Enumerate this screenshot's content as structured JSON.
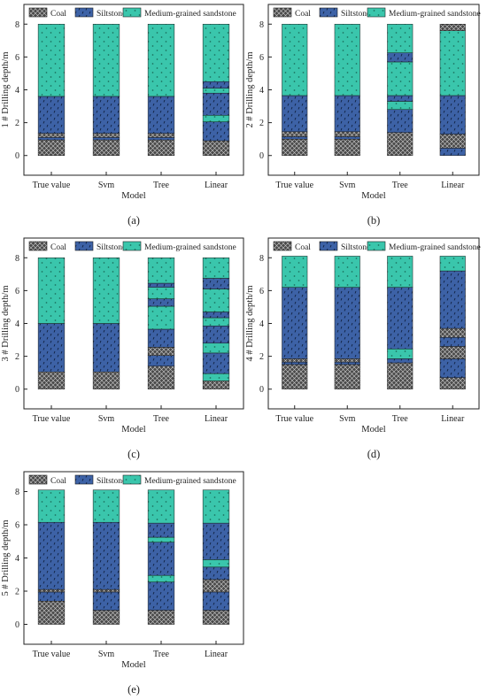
{
  "colors": {
    "coal": "#4a4a4a",
    "siltstone": "#3d62a6",
    "sandstone": "#3ac6ac",
    "axis": "#222222"
  },
  "legend": {
    "coal": "Coal",
    "siltstone": "Siltstone",
    "sandstone": "Medium-grained sandstone"
  },
  "chart_data": [
    {
      "type": "bar",
      "stacked": true,
      "panel_label": "(a)",
      "xlabel": "Model",
      "ylabel": "1 # Drilling depth/m",
      "categories": [
        "True value",
        "Svm",
        "Tree",
        "Linear"
      ],
      "ylim": [
        -1.2,
        9.2
      ],
      "yticks": [
        0,
        2,
        4,
        6,
        8
      ],
      "segments": [
        [
          [
            "coal",
            0,
            0.95
          ],
          [
            "siltstone",
            0.95,
            1.1
          ],
          [
            "coal",
            1.1,
            1.35
          ],
          [
            "siltstone",
            1.35,
            3.6
          ],
          [
            "sandstone",
            3.6,
            8.0
          ]
        ],
        [
          [
            "coal",
            0,
            0.95
          ],
          [
            "siltstone",
            0.95,
            1.1
          ],
          [
            "coal",
            1.1,
            1.35
          ],
          [
            "siltstone",
            1.35,
            3.6
          ],
          [
            "sandstone",
            3.6,
            8.0
          ]
        ],
        [
          [
            "coal",
            0,
            0.95
          ],
          [
            "siltstone",
            0.95,
            1.1
          ],
          [
            "coal",
            1.1,
            1.35
          ],
          [
            "siltstone",
            1.35,
            3.6
          ],
          [
            "sandstone",
            3.6,
            8.0
          ]
        ],
        [
          [
            "coal",
            0,
            0.9
          ],
          [
            "siltstone",
            0.9,
            2.05
          ],
          [
            "sandstone",
            2.05,
            2.45
          ],
          [
            "siltstone",
            2.45,
            3.8
          ],
          [
            "sandstone",
            3.8,
            4.1
          ],
          [
            "siltstone",
            4.1,
            4.5
          ],
          [
            "sandstone",
            4.5,
            8.0
          ]
        ]
      ]
    },
    {
      "type": "bar",
      "stacked": true,
      "panel_label": "(b)",
      "xlabel": "Model",
      "ylabel": "2 # Drilling depth/m",
      "categories": [
        "True value",
        "Svm",
        "Tree",
        "Linear"
      ],
      "ylim": [
        -1.2,
        9.2
      ],
      "yticks": [
        0,
        2,
        4,
        6,
        8
      ],
      "segments": [
        [
          [
            "coal",
            0,
            1.0
          ],
          [
            "siltstone",
            1.0,
            1.15
          ],
          [
            "coal",
            1.15,
            1.45
          ],
          [
            "siltstone",
            1.45,
            3.65
          ],
          [
            "sandstone",
            3.65,
            8.0
          ]
        ],
        [
          [
            "coal",
            0,
            1.0
          ],
          [
            "siltstone",
            1.0,
            1.15
          ],
          [
            "coal",
            1.15,
            1.45
          ],
          [
            "siltstone",
            1.45,
            3.65
          ],
          [
            "sandstone",
            3.65,
            8.0
          ]
        ],
        [
          [
            "coal",
            0,
            1.4
          ],
          [
            "siltstone",
            1.4,
            2.8
          ],
          [
            "sandstone",
            2.8,
            3.3
          ],
          [
            "siltstone",
            3.3,
            3.65
          ],
          [
            "sandstone",
            3.65,
            5.7
          ],
          [
            "siltstone",
            5.7,
            6.25
          ],
          [
            "sandstone",
            6.25,
            8.0
          ]
        ],
        [
          [
            "siltstone",
            0,
            0.45
          ],
          [
            "coal",
            0.45,
            1.3
          ],
          [
            "siltstone",
            1.3,
            3.65
          ],
          [
            "sandstone",
            3.65,
            7.6
          ],
          [
            "coal",
            7.6,
            8.0
          ]
        ]
      ]
    },
    {
      "type": "bar",
      "stacked": true,
      "panel_label": "(c)",
      "xlabel": "Model",
      "ylabel": "3 # Drilling depth/m",
      "categories": [
        "True value",
        "Svm",
        "Tree",
        "Linear"
      ],
      "ylim": [
        -1.2,
        9.2
      ],
      "yticks": [
        0,
        2,
        4,
        6,
        8
      ],
      "segments": [
        [
          [
            "coal",
            0,
            1.05
          ],
          [
            "siltstone",
            1.05,
            4.0
          ],
          [
            "sandstone",
            4.0,
            8.0
          ]
        ],
        [
          [
            "coal",
            0,
            1.05
          ],
          [
            "siltstone",
            1.05,
            4.0
          ],
          [
            "sandstone",
            4.0,
            8.0
          ]
        ],
        [
          [
            "coal",
            0,
            1.4
          ],
          [
            "siltstone",
            1.4,
            2.05
          ],
          [
            "coal",
            2.05,
            2.55
          ],
          [
            "siltstone",
            2.55,
            3.65
          ],
          [
            "sandstone",
            3.65,
            5.05
          ],
          [
            "siltstone",
            5.05,
            5.5
          ],
          [
            "sandstone",
            5.5,
            6.2
          ],
          [
            "siltstone",
            6.2,
            6.45
          ],
          [
            "sandstone",
            6.45,
            8.0
          ]
        ],
        [
          [
            "coal",
            0,
            0.5
          ],
          [
            "sandstone",
            0.5,
            0.95
          ],
          [
            "siltstone",
            0.95,
            2.2
          ],
          [
            "sandstone",
            2.2,
            2.8
          ],
          [
            "siltstone",
            2.8,
            3.85
          ],
          [
            "sandstone",
            3.85,
            4.35
          ],
          [
            "siltstone",
            4.35,
            4.7
          ],
          [
            "sandstone",
            4.7,
            6.1
          ],
          [
            "siltstone",
            6.1,
            6.75
          ],
          [
            "sandstone",
            6.75,
            8.0
          ]
        ]
      ]
    },
    {
      "type": "bar",
      "stacked": true,
      "panel_label": "(d)",
      "xlabel": "Model",
      "ylabel": "4 # Drilling depth/m",
      "categories": [
        "True value",
        "Svm",
        "Tree",
        "Linear"
      ],
      "ylim": [
        -1.2,
        9.2
      ],
      "yticks": [
        0,
        2,
        4,
        6,
        8
      ],
      "segments": [
        [
          [
            "coal",
            0,
            1.5
          ],
          [
            "siltstone",
            1.5,
            1.65
          ],
          [
            "coal",
            1.65,
            1.85
          ],
          [
            "siltstone",
            1.85,
            6.2
          ],
          [
            "sandstone",
            6.2,
            8.1
          ]
        ],
        [
          [
            "coal",
            0,
            1.5
          ],
          [
            "siltstone",
            1.5,
            1.65
          ],
          [
            "coal",
            1.65,
            1.85
          ],
          [
            "siltstone",
            1.85,
            6.2
          ],
          [
            "sandstone",
            6.2,
            8.1
          ]
        ],
        [
          [
            "coal",
            0,
            1.6
          ],
          [
            "siltstone",
            1.6,
            1.85
          ],
          [
            "sandstone",
            1.85,
            2.45
          ],
          [
            "siltstone",
            2.45,
            6.2
          ],
          [
            "sandstone",
            6.2,
            8.1
          ]
        ],
        [
          [
            "coal",
            0,
            0.7
          ],
          [
            "siltstone",
            0.7,
            1.85
          ],
          [
            "coal",
            1.85,
            2.6
          ],
          [
            "siltstone",
            2.6,
            3.15
          ],
          [
            "coal",
            3.15,
            3.7
          ],
          [
            "siltstone",
            3.7,
            7.2
          ],
          [
            "sandstone",
            7.2,
            8.1
          ]
        ]
      ]
    },
    {
      "type": "bar",
      "stacked": true,
      "panel_label": "(e)",
      "xlabel": "Model",
      "ylabel": "5 # Drilling depth/m",
      "categories": [
        "True value",
        "Svm",
        "Tree",
        "Linear"
      ],
      "ylim": [
        -1.2,
        9.2
      ],
      "yticks": [
        0,
        2,
        4,
        6,
        8
      ],
      "segments": [
        [
          [
            "coal",
            0,
            1.4
          ],
          [
            "siltstone",
            1.4,
            1.95
          ],
          [
            "coal",
            1.95,
            2.1
          ],
          [
            "siltstone",
            2.1,
            6.15
          ],
          [
            "sandstone",
            6.15,
            8.1
          ]
        ],
        [
          [
            "coal",
            0,
            0.85
          ],
          [
            "siltstone",
            0.85,
            1.95
          ],
          [
            "coal",
            1.95,
            2.1
          ],
          [
            "siltstone",
            2.1,
            6.15
          ],
          [
            "sandstone",
            6.15,
            8.1
          ]
        ],
        [
          [
            "coal",
            0,
            0.85
          ],
          [
            "siltstone",
            0.85,
            2.55
          ],
          [
            "sandstone",
            2.55,
            2.95
          ],
          [
            "siltstone",
            2.95,
            4.95
          ],
          [
            "sandstone",
            4.95,
            5.25
          ],
          [
            "siltstone",
            5.25,
            6.1
          ],
          [
            "sandstone",
            6.1,
            8.1
          ]
        ],
        [
          [
            "coal",
            0,
            0.85
          ],
          [
            "siltstone",
            0.85,
            1.95
          ],
          [
            "coal",
            1.95,
            2.7
          ],
          [
            "siltstone",
            2.7,
            3.45
          ],
          [
            "sandstone",
            3.45,
            3.9
          ],
          [
            "siltstone",
            3.9,
            6.1
          ],
          [
            "sandstone",
            6.1,
            8.1
          ]
        ]
      ]
    }
  ]
}
